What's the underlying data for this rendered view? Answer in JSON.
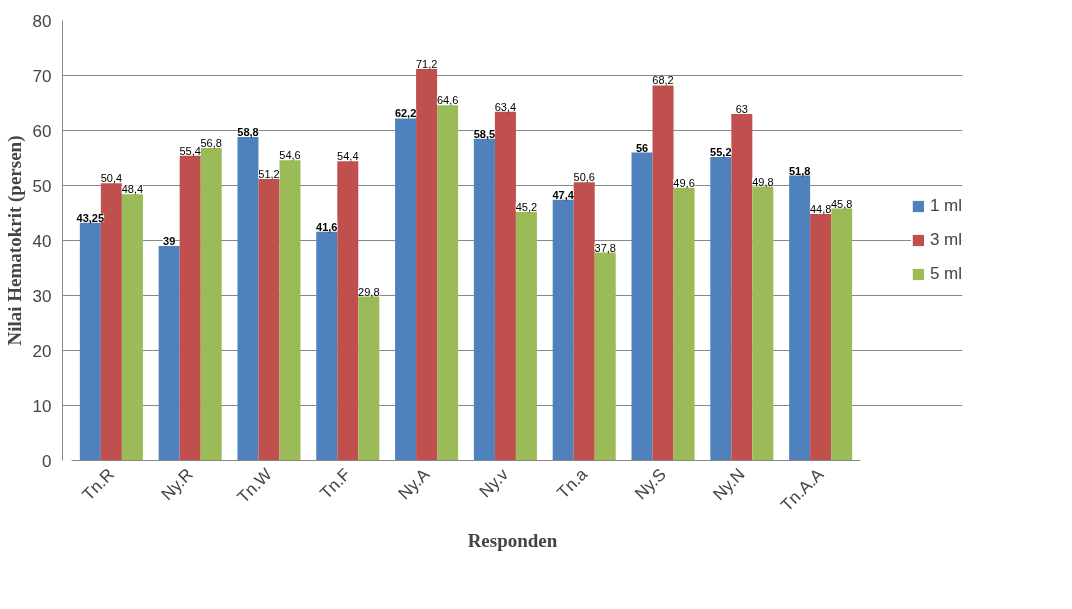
{
  "chart_data": {
    "type": "bar",
    "xlabel": "Responden",
    "ylabel": "Nilai Hematokrit (persen)",
    "categories": [
      "Tn.R",
      "Ny.R",
      "Tn.W",
      "Tn.F",
      "Ny.A",
      "Ny.v",
      "Tn.a",
      "Ny.S",
      "Ny.N",
      "Tn.A.A"
    ],
    "series": [
      {
        "name": "1 ml",
        "color": "#4f81bd",
        "values": [
          43.25,
          39,
          58.8,
          41.6,
          62.2,
          58.5,
          47.4,
          56,
          55.2,
          51.8
        ],
        "value_labels": [
          "43,25",
          "39",
          "58,8",
          "41,6",
          "62,2",
          "58,5",
          "47,4",
          "56",
          "55,2",
          "51,8"
        ]
      },
      {
        "name": "3 ml",
        "color": "#c0504d",
        "values": [
          50.4,
          55.4,
          51.2,
          54.4,
          71.2,
          63.4,
          50.6,
          68.2,
          63,
          44.8
        ],
        "value_labels": [
          "50,4",
          "55,4",
          "51,2",
          "54,4",
          "71,2",
          "63,4",
          "50,6",
          "68,2",
          "63",
          "44,8"
        ]
      },
      {
        "name": "5 ml",
        "color": "#9bbb59",
        "values": [
          48.4,
          56.8,
          54.6,
          29.8,
          64.6,
          45.2,
          37.8,
          49.6,
          49.8,
          45.8
        ],
        "value_labels": [
          "48,4",
          "56,8",
          "54,6",
          "29,8",
          "64,6",
          "45,2",
          "37,8",
          "49,6",
          "49,8",
          "45,8"
        ]
      }
    ],
    "ylim": [
      0,
      80
    ],
    "yticks": [
      0,
      10,
      20,
      30,
      40,
      50,
      60,
      70,
      80
    ],
    "grid": "y",
    "legend": "right"
  }
}
